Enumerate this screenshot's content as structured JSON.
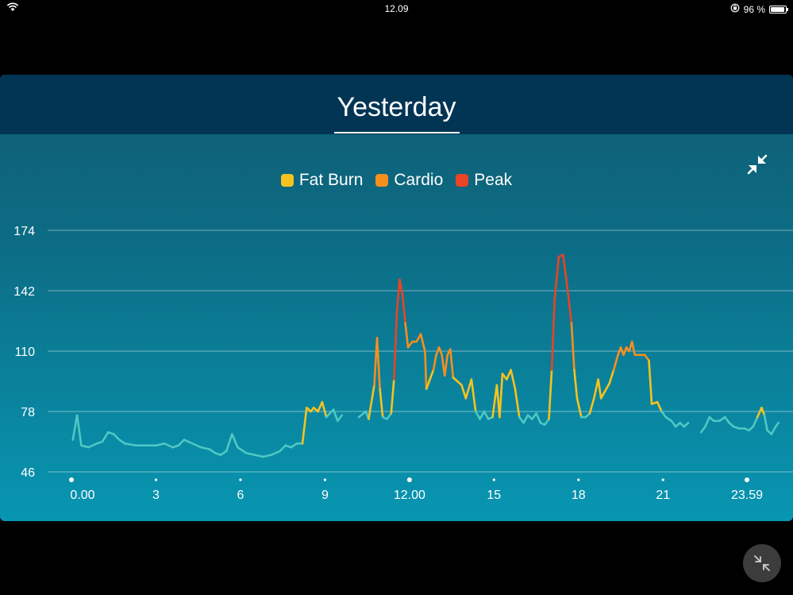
{
  "status": {
    "time": "12.09",
    "battery": "96 %",
    "battery_level": 0.96
  },
  "title": "Yesterday",
  "colors": {
    "fat_burn": "#f7c21f",
    "cardio": "#f78f1e",
    "peak": "#ea4325",
    "baseline": "#4fc8c4"
  },
  "icons": {
    "collapse": "collapse-arrows-icon",
    "fab": "minimize-icon"
  },
  "chart_data": {
    "type": "line",
    "title": "Yesterday",
    "xlabel": "",
    "ylabel": "",
    "xlim": [
      0,
      24
    ],
    "ylim": [
      46,
      174
    ],
    "y_ticks": [
      46,
      78,
      110,
      142,
      174
    ],
    "y_tick_labels": [
      "46",
      "78",
      "110",
      "142",
      "174"
    ],
    "x_ticks": [
      0,
      3,
      6,
      9,
      12,
      15,
      18,
      21,
      23.98
    ],
    "x_tick_labels": [
      "0.00",
      "3",
      "6",
      "9",
      "12.00",
      "15",
      "18",
      "21",
      "23.59"
    ],
    "grid": true,
    "legend": [
      {
        "name": "Fat Burn",
        "color": "#f7c21f"
      },
      {
        "name": "Cardio",
        "color": "#f78f1e"
      },
      {
        "name": "Peak",
        "color": "#ea4325"
      }
    ],
    "legend_position": "top-center",
    "series": [
      {
        "segments": [
          [
            [
              0.05,
              63
            ],
            [
              0.2,
              76
            ],
            [
              0.35,
              60
            ],
            [
              0.6,
              59
            ],
            [
              0.9,
              61
            ],
            [
              1.1,
              62
            ],
            [
              1.3,
              67
            ],
            [
              1.5,
              66
            ],
            [
              1.7,
              63
            ],
            [
              1.9,
              61
            ],
            [
              2.3,
              60
            ],
            [
              2.7,
              60
            ],
            [
              3.0,
              60
            ],
            [
              3.3,
              61
            ],
            [
              3.6,
              59
            ],
            [
              3.8,
              60
            ],
            [
              4.0,
              63
            ],
            [
              4.3,
              61
            ],
            [
              4.6,
              59
            ],
            [
              4.9,
              58
            ],
            [
              5.1,
              56
            ],
            [
              5.3,
              55
            ],
            [
              5.5,
              57
            ],
            [
              5.7,
              66
            ],
            [
              5.9,
              59
            ],
            [
              6.2,
              56
            ],
            [
              6.5,
              55
            ],
            [
              6.8,
              54
            ],
            [
              7.1,
              55
            ],
            [
              7.4,
              57
            ],
            [
              7.6,
              60
            ],
            [
              7.8,
              59
            ],
            [
              8.0,
              61
            ],
            [
              8.2,
              61
            ],
            [
              8.35,
              80
            ],
            [
              8.5,
              78
            ],
            [
              8.6,
              80
            ],
            [
              8.75,
              78
            ],
            [
              8.9,
              83
            ],
            [
              9.05,
              75
            ],
            [
              9.3,
              79
            ],
            [
              9.45,
              73
            ],
            [
              9.6,
              76
            ]
          ],
          [
            [
              10.2,
              75
            ],
            [
              10.45,
              78
            ],
            [
              10.55,
              74
            ],
            [
              10.75,
              92
            ],
            [
              10.85,
              117
            ],
            [
              10.95,
              90
            ],
            [
              11.05,
              75
            ],
            [
              11.2,
              74
            ],
            [
              11.35,
              77
            ],
            [
              11.45,
              95
            ],
            [
              11.55,
              130
            ],
            [
              11.65,
              148
            ],
            [
              11.75,
              140
            ],
            [
              11.85,
              125
            ],
            [
              11.95,
              112
            ],
            [
              12.1,
              115
            ],
            [
              12.25,
              115
            ],
            [
              12.4,
              119
            ],
            [
              12.55,
              110
            ],
            [
              12.6,
              90
            ],
            [
              12.75,
              96
            ],
            [
              12.85,
              100
            ],
            [
              12.95,
              108
            ],
            [
              13.05,
              112
            ],
            [
              13.15,
              108
            ],
            [
              13.25,
              97
            ],
            [
              13.35,
              108
            ],
            [
              13.45,
              111
            ],
            [
              13.55,
              96
            ],
            [
              13.7,
              94
            ],
            [
              13.85,
              92
            ],
            [
              14.0,
              85
            ],
            [
              14.2,
              95
            ],
            [
              14.35,
              78
            ],
            [
              14.5,
              74
            ],
            [
              14.65,
              78
            ],
            [
              14.8,
              74
            ],
            [
              14.95,
              75
            ],
            [
              15.1,
              92
            ],
            [
              15.2,
              75
            ],
            [
              15.3,
              98
            ],
            [
              15.45,
              95
            ],
            [
              15.6,
              100
            ],
            [
              15.75,
              90
            ],
            [
              15.9,
              75
            ],
            [
              16.05,
              72
            ],
            [
              16.2,
              76
            ],
            [
              16.35,
              74
            ],
            [
              16.5,
              77
            ],
            [
              16.65,
              72
            ],
            [
              16.8,
              71
            ],
            [
              16.95,
              74
            ],
            [
              17.05,
              100
            ],
            [
              17.15,
              137
            ],
            [
              17.3,
              160
            ],
            [
              17.45,
              161
            ],
            [
              17.55,
              150
            ],
            [
              17.65,
              138
            ],
            [
              17.75,
              125
            ],
            [
              17.85,
              100
            ],
            [
              17.95,
              85
            ],
            [
              18.1,
              75
            ],
            [
              18.25,
              75
            ],
            [
              18.4,
              77
            ],
            [
              18.55,
              85
            ],
            [
              18.7,
              95
            ],
            [
              18.8,
              85
            ],
            [
              18.95,
              89
            ],
            [
              19.1,
              93
            ],
            [
              19.25,
              100
            ],
            [
              19.4,
              108
            ],
            [
              19.5,
              112
            ],
            [
              19.6,
              108
            ],
            [
              19.7,
              112
            ],
            [
              19.8,
              110
            ],
            [
              19.9,
              115
            ],
            [
              20.0,
              108
            ],
            [
              20.15,
              108
            ],
            [
              20.35,
              108
            ],
            [
              20.5,
              105
            ],
            [
              20.6,
              82
            ],
            [
              20.8,
              83
            ],
            [
              20.95,
              78
            ],
            [
              21.1,
              75
            ],
            [
              21.3,
              73
            ],
            [
              21.45,
              70
            ],
            [
              21.6,
              72
            ],
            [
              21.75,
              70
            ],
            [
              21.9,
              72
            ]
          ],
          [
            [
              22.35,
              67
            ],
            [
              22.5,
              70
            ],
            [
              22.65,
              75
            ],
            [
              22.8,
              73
            ],
            [
              23.0,
              73
            ],
            [
              23.2,
              75
            ],
            [
              23.35,
              72
            ],
            [
              23.5,
              70
            ],
            [
              23.7,
              69
            ],
            [
              23.9,
              69
            ],
            [
              24.05,
              68
            ],
            [
              24.2,
              70
            ],
            [
              24.35,
              75
            ],
            [
              24.5,
              80
            ],
            [
              24.6,
              76
            ],
            [
              24.7,
              68
            ],
            [
              24.85,
              66
            ],
            [
              25.0,
              70
            ],
            [
              25.1,
              72
            ]
          ]
        ]
      }
    ]
  }
}
